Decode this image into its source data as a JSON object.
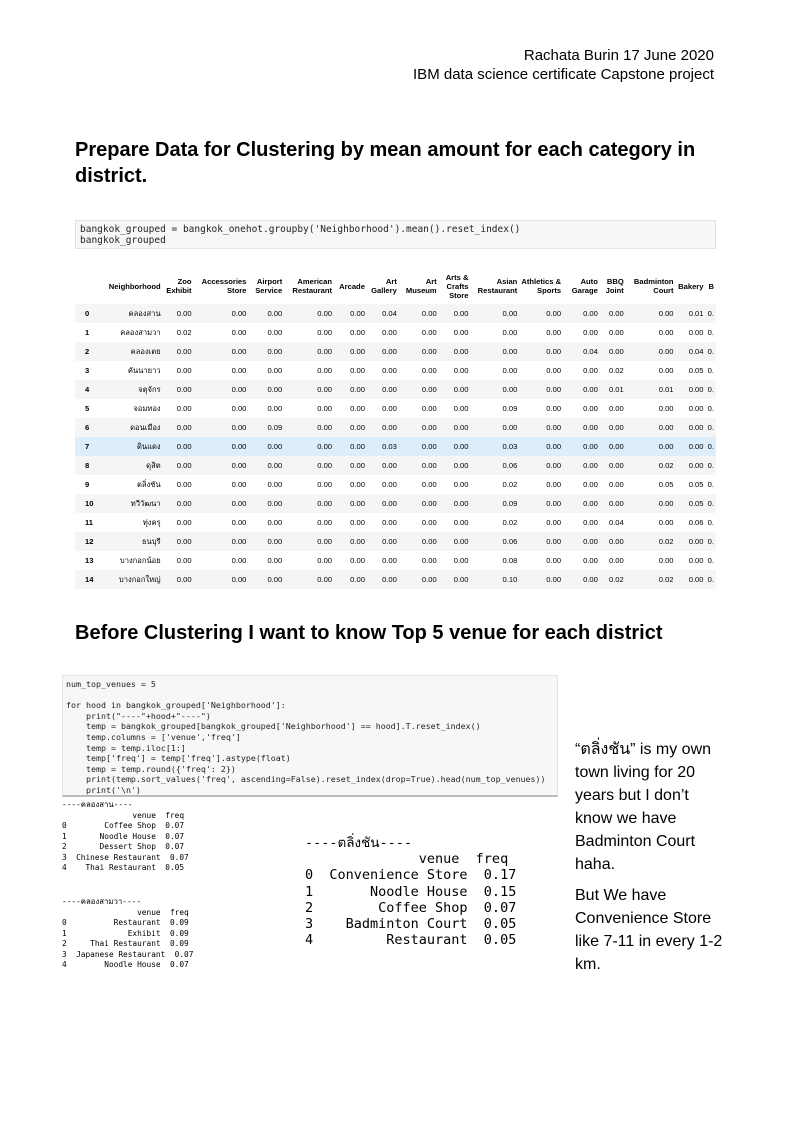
{
  "header": {
    "line1": "Rachata Burin 17 June 2020",
    "line2": "IBM data science certificate Capstone project"
  },
  "sections": {
    "title1": "Prepare Data for Clustering by mean amount for each category in district.",
    "title2": "Before Clustering I want to know Top 5 venue for each district"
  },
  "code_cell_1": [
    "bangkok_grouped = bangkok_onehot.groupby('Neighborhood').mean().reset_index()",
    "bangkok_grouped"
  ],
  "table": {
    "columns": [
      "",
      "Neighborhood",
      "Zoo Exhibit",
      "Accessories Store",
      "Airport Service",
      "American Restaurant",
      "Arcade",
      "Art Gallery",
      "Art Museum",
      "Arts & Crafts Store",
      "Asian Restaurant",
      "Athletics & Sports",
      "Auto Garage",
      "BBQ Joint",
      "Badminton Court",
      "Bakery",
      "B"
    ],
    "highlight_row": 7,
    "rows": [
      [
        "0",
        "คลองสาน",
        "0.00",
        "0.00",
        "0.00",
        "0.00",
        "0.00",
        "0.04",
        "0.00",
        "0.00",
        "0.00",
        "0.00",
        "0.00",
        "0.00",
        "0.00",
        "0.01",
        "0."
      ],
      [
        "1",
        "คลองสามวา",
        "0.02",
        "0.00",
        "0.00",
        "0.00",
        "0.00",
        "0.00",
        "0.00",
        "0.00",
        "0.00",
        "0.00",
        "0.00",
        "0.00",
        "0.00",
        "0.00",
        "0."
      ],
      [
        "2",
        "คลองเตย",
        "0.00",
        "0.00",
        "0.00",
        "0.00",
        "0.00",
        "0.00",
        "0.00",
        "0.00",
        "0.00",
        "0.00",
        "0.04",
        "0.00",
        "0.00",
        "0.04",
        "0."
      ],
      [
        "3",
        "คันนายาว",
        "0.00",
        "0.00",
        "0.00",
        "0.00",
        "0.00",
        "0.00",
        "0.00",
        "0.00",
        "0.00",
        "0.00",
        "0.00",
        "0.02",
        "0.00",
        "0.05",
        "0."
      ],
      [
        "4",
        "จตุจักร",
        "0.00",
        "0.00",
        "0.00",
        "0.00",
        "0.00",
        "0.00",
        "0.00",
        "0.00",
        "0.00",
        "0.00",
        "0.00",
        "0.01",
        "0.01",
        "0.00",
        "0."
      ],
      [
        "5",
        "จอมทอง",
        "0.00",
        "0.00",
        "0.00",
        "0.00",
        "0.00",
        "0.00",
        "0.00",
        "0.00",
        "0.09",
        "0.00",
        "0.00",
        "0.00",
        "0.00",
        "0.00",
        "0."
      ],
      [
        "6",
        "ดอนเมือง",
        "0.00",
        "0.00",
        "0.09",
        "0.00",
        "0.00",
        "0.00",
        "0.00",
        "0.00",
        "0.00",
        "0.00",
        "0.00",
        "0.00",
        "0.00",
        "0.00",
        "0."
      ],
      [
        "7",
        "ดินแดง",
        "0.00",
        "0.00",
        "0.00",
        "0.00",
        "0.00",
        "0.03",
        "0.00",
        "0.00",
        "0.03",
        "0.00",
        "0.00",
        "0.00",
        "0.00",
        "0.00",
        "0."
      ],
      [
        "8",
        "ดุสิต",
        "0.00",
        "0.00",
        "0.00",
        "0.00",
        "0.00",
        "0.00",
        "0.00",
        "0.00",
        "0.06",
        "0.00",
        "0.00",
        "0.00",
        "0.02",
        "0.00",
        "0."
      ],
      [
        "9",
        "ตลิ่งชัน",
        "0.00",
        "0.00",
        "0.00",
        "0.00",
        "0.00",
        "0.00",
        "0.00",
        "0.00",
        "0.02",
        "0.00",
        "0.00",
        "0.00",
        "0.05",
        "0.05",
        "0."
      ],
      [
        "10",
        "ทวีวัฒนา",
        "0.00",
        "0.00",
        "0.00",
        "0.00",
        "0.00",
        "0.00",
        "0.00",
        "0.00",
        "0.09",
        "0.00",
        "0.00",
        "0.00",
        "0.00",
        "0.05",
        "0."
      ],
      [
        "11",
        "ทุ่งครุ",
        "0.00",
        "0.00",
        "0.00",
        "0.00",
        "0.00",
        "0.00",
        "0.00",
        "0.00",
        "0.02",
        "0.00",
        "0.00",
        "0.04",
        "0.00",
        "0.06",
        "0."
      ],
      [
        "12",
        "ธนบุรี",
        "0.00",
        "0.00",
        "0.00",
        "0.00",
        "0.00",
        "0.00",
        "0.00",
        "0.00",
        "0.06",
        "0.00",
        "0.00",
        "0.00",
        "0.02",
        "0.00",
        "0."
      ],
      [
        "13",
        "บางกอกน้อย",
        "0.00",
        "0.00",
        "0.00",
        "0.00",
        "0.00",
        "0.00",
        "0.00",
        "0.00",
        "0.08",
        "0.00",
        "0.00",
        "0.00",
        "0.00",
        "0.00",
        "0."
      ],
      [
        "14",
        "บางกอกใหญ่",
        "0.00",
        "0.00",
        "0.00",
        "0.00",
        "0.00",
        "0.00",
        "0.00",
        "0.00",
        "0.10",
        "0.00",
        "0.00",
        "0.02",
        "0.02",
        "0.00",
        "0."
      ]
    ]
  },
  "code_cell_2": [
    "num_top_venues = 5",
    "",
    "for hood in bangkok_grouped['Neighborhood']:",
    "    print(\"----\"+hood+\"----\")",
    "    temp = bangkok_grouped[bangkok_grouped['Neighborhood'] == hood].T.reset_index()",
    "    temp.columns = ['venue','freq']",
    "    temp = temp.iloc[1:]",
    "    temp['freq'] = temp['freq'].astype(float)",
    "    temp = temp.round({'freq': 2})",
    "    print(temp.sort_values('freq', ascending=False).reset_index(drop=True).head(num_top_venues))",
    "    print('\\n')"
  ],
  "output_1": {
    "heading": "----คลองสาน----",
    "lines": [
      "               venue  freq",
      "0        Coffee Shop  0.07",
      "1       Noodle House  0.07",
      "2       Dessert Shop  0.07",
      "3  Chinese Restaurant  0.07",
      "4    Thai Restaurant  0.05"
    ]
  },
  "output_2": {
    "heading": "----คลองสามวา----",
    "lines": [
      "                venue  freq",
      "0          Restaurant  0.09",
      "1             Exhibit  0.09",
      "2     Thai Restaurant  0.09",
      "3  Japanese Restaurant  0.07",
      "4        Noodle House  0.07"
    ]
  },
  "output_big": {
    "heading": "----ตลิ่งชัน----",
    "lines": [
      "              venue  freq",
      "0  Convenience Store  0.17",
      "1       Noodle House  0.15",
      "2        Coffee Shop  0.07",
      "3    Badminton Court  0.05",
      "4         Restaurant  0.05"
    ]
  },
  "note": {
    "p1": "“ตลิ่งชัน” is my own town living for 20 years but I don’t know we have Badminton Court haha.",
    "p2": "But We have Convenience Store like 7-11 in every 1-2 km."
  }
}
